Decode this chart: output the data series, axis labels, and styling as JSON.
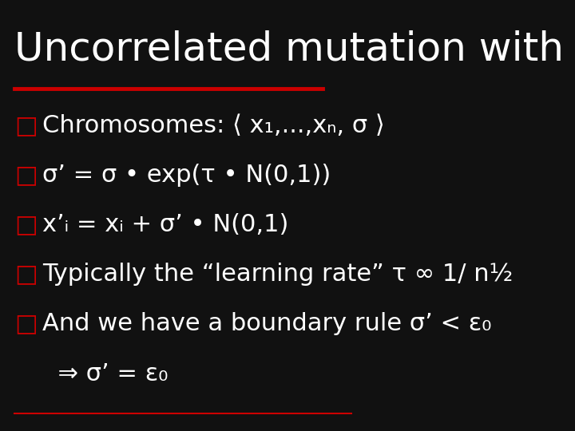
{
  "background_color": "#111111",
  "title_text": "Uncorrelated mutation with one",
  "title_color": "#ffffff",
  "title_fontsize": 36,
  "red_line_color": "#cc0000",
  "bottom_line_color": "#cc0000",
  "bullet_color": "#cc0000",
  "text_color": "#ffffff",
  "bullet_char": "□",
  "lines": [
    "Chromosomes: ⟨ x₁,...,xₙ, σ ⟩",
    "σ’ = σ • exp(τ • N(0,1))",
    "x’ᵢ = xᵢ + σ’ • N(0,1)",
    "Typically the “learning rate” τ ∞ 1/ n½",
    "And we have a boundary rule σ’ < ε₀",
    "  ⇒ σ’ = ε₀"
  ],
  "has_bullet": [
    true,
    true,
    true,
    true,
    true,
    false
  ],
  "body_fontsize": 22,
  "fig_width": 7.2,
  "fig_height": 5.4,
  "dpi": 100
}
